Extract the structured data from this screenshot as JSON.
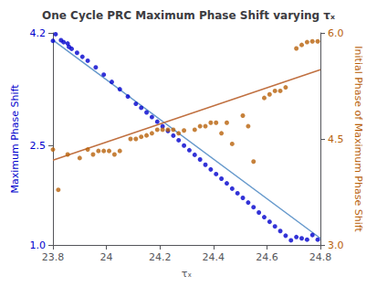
{
  "chart_data": {
    "type": "scatter",
    "title": "One Cycle PRC Maximum Phase Shift varying τₓ",
    "xlabel": "τₓ",
    "ylabel": "Maximum Phase Shift",
    "y2label": "Initial Phase of Maximum Phase Shift",
    "xlim": [
      23.8,
      24.8
    ],
    "xticks": [
      23.8,
      24,
      24.2,
      24.4,
      24.6,
      24.8
    ],
    "ylim": [
      1,
      4.2
    ],
    "yticks": [
      {
        "value": 1,
        "label": "1.0"
      },
      {
        "value": 2.5,
        "label": "2.5"
      },
      {
        "value": 4.2,
        "label": "4.2"
      }
    ],
    "y2lim": [
      3,
      6
    ],
    "y2ticks": [
      {
        "value": 3,
        "label": "3.0"
      },
      {
        "value": 4.5,
        "label": "4.5"
      },
      {
        "value": 6,
        "label": "6.0"
      }
    ],
    "grid": false,
    "series": [
      {
        "type": "scatter",
        "color": "#0000cd",
        "x": [
          23.8,
          23.81,
          23.83,
          23.84,
          23.855,
          23.86,
          23.87,
          23.89,
          23.91,
          23.93,
          23.96,
          23.99,
          24.02,
          24.05,
          24.08,
          24.11,
          24.13,
          24.15,
          24.17,
          24.19,
          24.21,
          24.23,
          24.25,
          24.27,
          24.29,
          24.31,
          24.33,
          24.35,
          24.37,
          24.39,
          24.41,
          24.43,
          24.45,
          24.47,
          24.49,
          24.51,
          24.53,
          24.55,
          24.57,
          24.59,
          24.61,
          24.63,
          24.65,
          24.67,
          24.69,
          24.71,
          24.73,
          24.75,
          24.77,
          24.79
        ],
        "values": [
          4.08,
          4.18,
          4.09,
          4.06,
          4.04,
          3.99,
          3.96,
          3.9,
          3.84,
          3.78,
          3.68,
          3.57,
          3.46,
          3.35,
          3.24,
          3.13,
          3.07,
          3.0,
          2.93,
          2.86,
          2.79,
          2.72,
          2.65,
          2.58,
          2.5,
          2.43,
          2.36,
          2.29,
          2.21,
          2.14,
          2.07,
          2.0,
          1.93,
          1.85,
          1.78,
          1.71,
          1.64,
          1.57,
          1.49,
          1.42,
          1.35,
          1.28,
          1.21,
          1.14,
          1.07,
          1.12,
          1.1,
          1.08,
          1.15,
          1.08
        ]
      },
      {
        "type": "line",
        "color": "#6699cc",
        "x": [
          23.8,
          24.8
        ],
        "values": [
          4.09,
          1.1
        ]
      },
      {
        "type": "scatter",
        "color": "#b8610a",
        "axis": "y2",
        "x": [
          23.8,
          23.82,
          23.855,
          23.9,
          23.93,
          23.95,
          23.97,
          23.99,
          24.01,
          24.03,
          24.05,
          24.09,
          24.11,
          24.13,
          24.15,
          24.17,
          24.19,
          24.21,
          24.23,
          24.25,
          24.27,
          24.29,
          24.33,
          24.35,
          24.37,
          24.39,
          24.41,
          24.43,
          24.45,
          24.47,
          24.51,
          24.53,
          24.55,
          24.59,
          24.61,
          24.63,
          24.65,
          24.67,
          24.71,
          24.73,
          24.75,
          24.77,
          24.79
        ],
        "values": [
          4.35,
          3.78,
          4.28,
          4.23,
          4.35,
          4.28,
          4.33,
          4.33,
          4.33,
          4.28,
          4.33,
          4.5,
          4.5,
          4.53,
          4.55,
          4.58,
          4.63,
          4.63,
          4.63,
          4.63,
          4.58,
          4.62,
          4.63,
          4.68,
          4.68,
          4.73,
          4.73,
          4.58,
          4.73,
          4.43,
          4.83,
          4.68,
          4.18,
          5.08,
          5.13,
          5.18,
          5.18,
          5.23,
          5.78,
          5.83,
          5.87,
          5.88,
          5.88
        ]
      },
      {
        "type": "line",
        "color": "#c07040",
        "axis": "y2",
        "x": [
          23.8,
          24.8
        ],
        "values": [
          4.2,
          5.48
        ]
      }
    ]
  }
}
